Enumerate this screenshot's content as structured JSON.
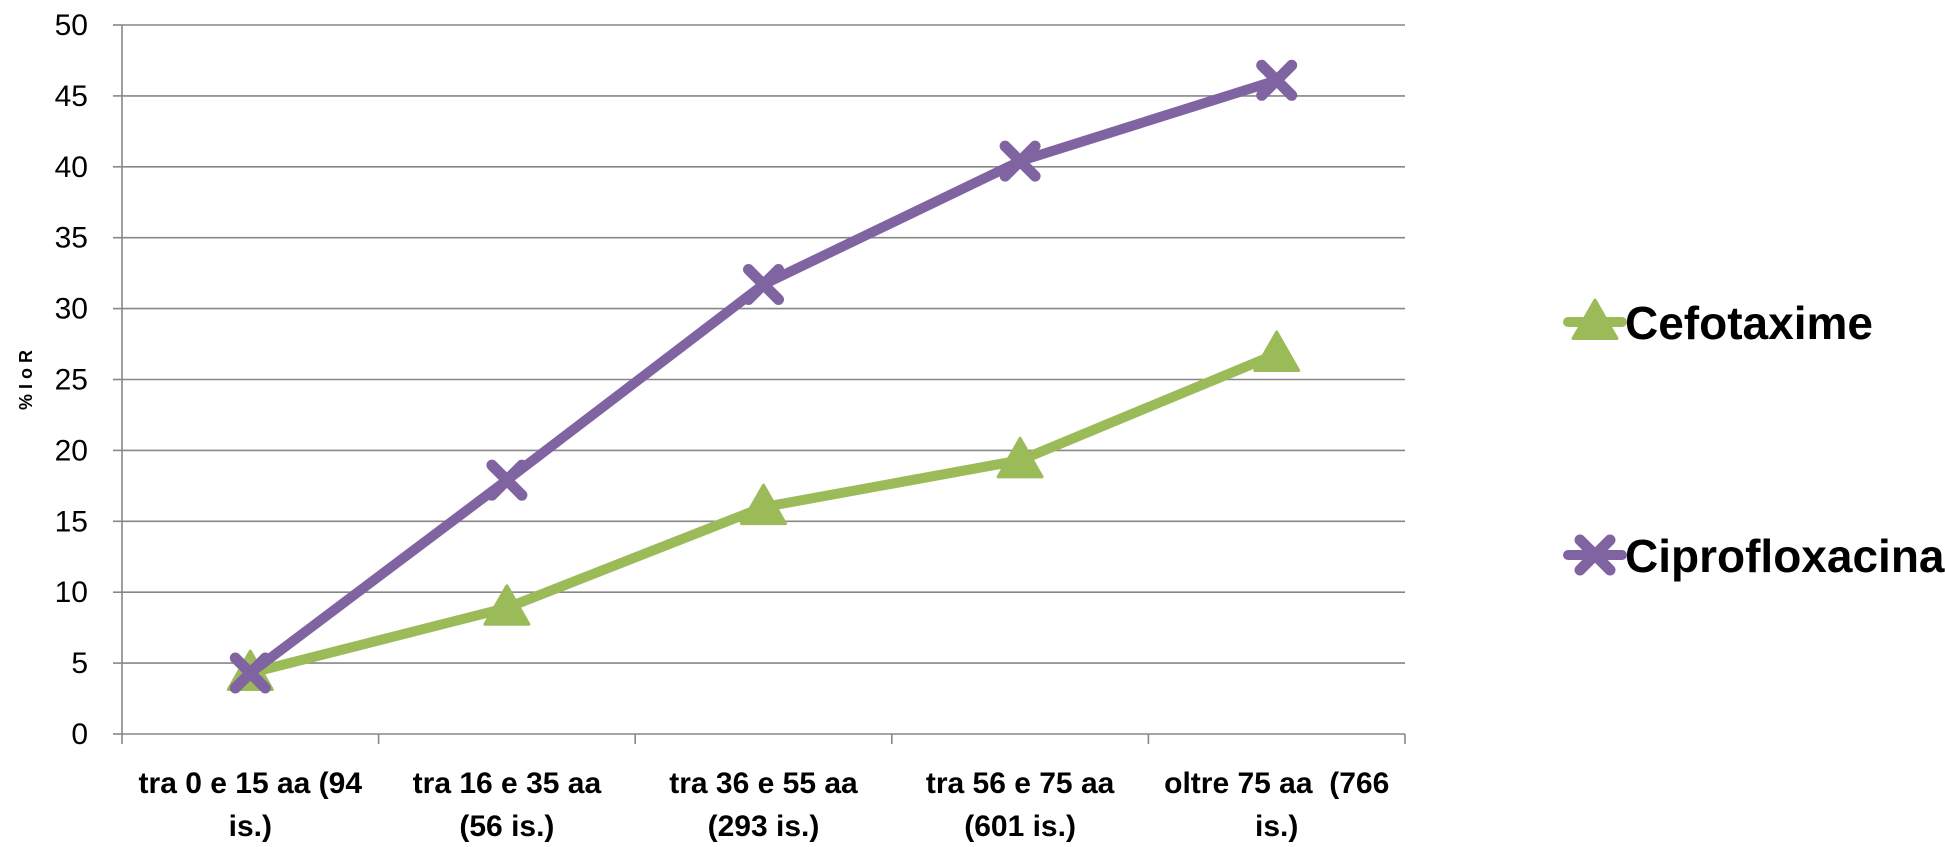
{
  "chart_data": {
    "type": "line",
    "ylabel": "% I o R",
    "xlabel": "",
    "ylim": [
      0,
      50
    ],
    "yticks": [
      0,
      5,
      10,
      15,
      20,
      25,
      30,
      35,
      40,
      45,
      50
    ],
    "grid": true,
    "legend_position": "right",
    "categories": [
      [
        "tra 0 e 15 aa (94",
        "is.)"
      ],
      [
        "tra 16 e 35 aa",
        "(56 is.)"
      ],
      [
        "tra 36 e 55 aa",
        "(293 is.)"
      ],
      [
        "tra 56 e 75 aa",
        "(601 is.)"
      ],
      [
        "oltre 75 aa  (766",
        "is.)"
      ]
    ],
    "series": [
      {
        "name": "Cefotaxime",
        "color": "#9BBB59",
        "marker": "triangle",
        "values": [
          4.3,
          8.9,
          16.0,
          19.3,
          26.8
        ]
      },
      {
        "name": "Ciprofloxacina",
        "color": "#8064A2",
        "marker": "x",
        "values": [
          4.3,
          17.9,
          31.7,
          40.4,
          46.1
        ]
      }
    ]
  }
}
